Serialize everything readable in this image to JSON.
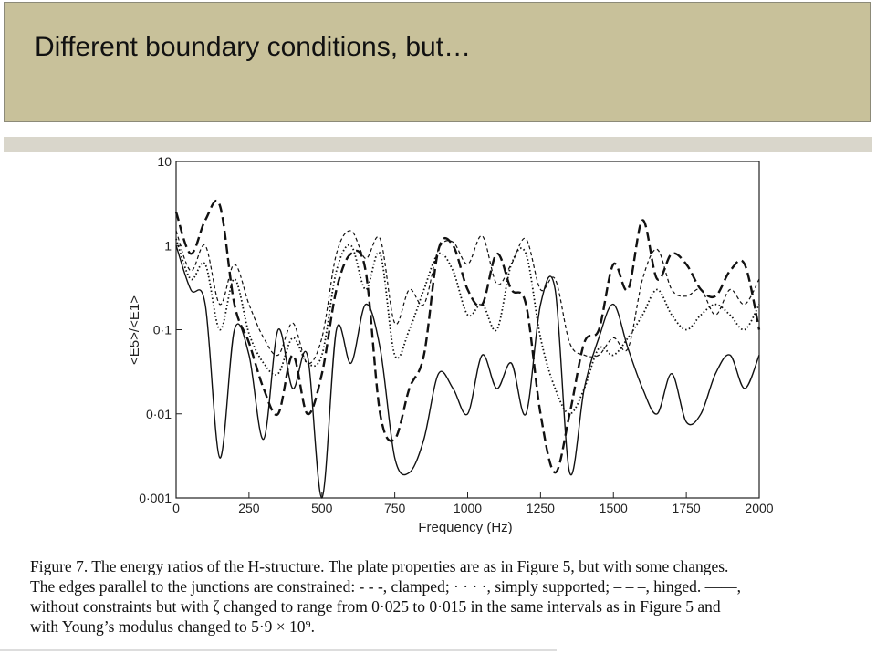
{
  "slide": {
    "title": "Different boundary conditions, but…"
  },
  "caption": {
    "line1": "Figure 7.  The energy ratios of the H-structure. The plate properties are as in Figure 5, but with some changes.",
    "line2": "The edges parallel to the junctions are constrained: - - -, clamped; · · · ·, simply supported; – – –, hinged. ——,",
    "line3": "without constraints but with ζ changed to range from 0·025 to 0·015 in the same intervals as in Figure 5 and",
    "line4": "with Young’s modulus changed to 5·9 × 10⁹."
  },
  "chart_data": {
    "type": "line",
    "title": "",
    "xlabel": "Frequency (Hz)",
    "ylabel": "<E5>/<E1>",
    "xlim": [
      0,
      2000
    ],
    "ylim": [
      0.001,
      10
    ],
    "y_scale": "log",
    "x_ticks": [
      "0",
      "250",
      "500",
      "750",
      "1000",
      "1250",
      "1500",
      "1750",
      "2000"
    ],
    "y_ticks": [
      "0·001",
      "0·01",
      "0·1",
      "1",
      "10"
    ],
    "grid": false,
    "x": [
      0,
      50,
      100,
      150,
      200,
      250,
      300,
      350,
      400,
      450,
      500,
      550,
      600,
      650,
      700,
      750,
      800,
      850,
      900,
      950,
      1000,
      1050,
      1100,
      1150,
      1200,
      1250,
      1300,
      1350,
      1400,
      1450,
      1500,
      1550,
      1600,
      1650,
      1700,
      1750,
      1800,
      1850,
      1900,
      1950,
      2000
    ],
    "series": [
      {
        "style": "dash-small",
        "values": [
          1.5,
          0.5,
          1.0,
          0.2,
          0.6,
          0.2,
          0.08,
          0.05,
          0.12,
          0.04,
          0.08,
          0.8,
          1.5,
          0.7,
          1.2,
          0.12,
          0.3,
          0.2,
          0.9,
          1.1,
          0.6,
          1.3,
          0.35,
          0.6,
          1.2,
          0.3,
          0.4,
          0.07,
          0.05,
          0.05,
          0.08,
          0.06,
          0.4,
          0.9,
          0.3,
          0.25,
          0.3,
          0.15,
          0.3,
          0.2,
          0.4
        ]
      },
      {
        "style": "dotted",
        "values": [
          1.2,
          0.4,
          0.6,
          0.1,
          0.4,
          0.09,
          0.04,
          0.03,
          0.08,
          0.04,
          0.05,
          0.5,
          1.0,
          0.3,
          0.8,
          0.05,
          0.1,
          0.3,
          0.8,
          0.5,
          0.15,
          0.2,
          0.1,
          0.6,
          0.8,
          0.08,
          0.02,
          0.01,
          0.02,
          0.06,
          0.05,
          0.08,
          0.15,
          0.3,
          0.15,
          0.1,
          0.15,
          0.2,
          0.15,
          0.1,
          0.2
        ]
      },
      {
        "style": "dash-large",
        "values": [
          2.5,
          0.8,
          2.0,
          3.0,
          0.2,
          0.07,
          0.02,
          0.01,
          0.05,
          0.01,
          0.03,
          0.3,
          0.8,
          0.5,
          0.01,
          0.005,
          0.02,
          0.05,
          0.9,
          1.0,
          0.3,
          0.2,
          0.8,
          0.3,
          0.2,
          0.01,
          0.002,
          0.01,
          0.07,
          0.1,
          0.6,
          0.3,
          2.0,
          0.4,
          0.8,
          0.6,
          0.3,
          0.25,
          0.5,
          0.6,
          0.1
        ]
      },
      {
        "style": "solid",
        "values": [
          1.0,
          0.3,
          0.2,
          0.003,
          0.1,
          0.05,
          0.005,
          0.1,
          0.02,
          0.05,
          0.001,
          0.1,
          0.04,
          0.2,
          0.06,
          0.003,
          0.002,
          0.005,
          0.03,
          0.02,
          0.01,
          0.05,
          0.02,
          0.04,
          0.01,
          0.2,
          0.3,
          0.002,
          0.02,
          0.08,
          0.2,
          0.06,
          0.02,
          0.01,
          0.03,
          0.008,
          0.01,
          0.03,
          0.05,
          0.02,
          0.05
        ]
      }
    ]
  }
}
